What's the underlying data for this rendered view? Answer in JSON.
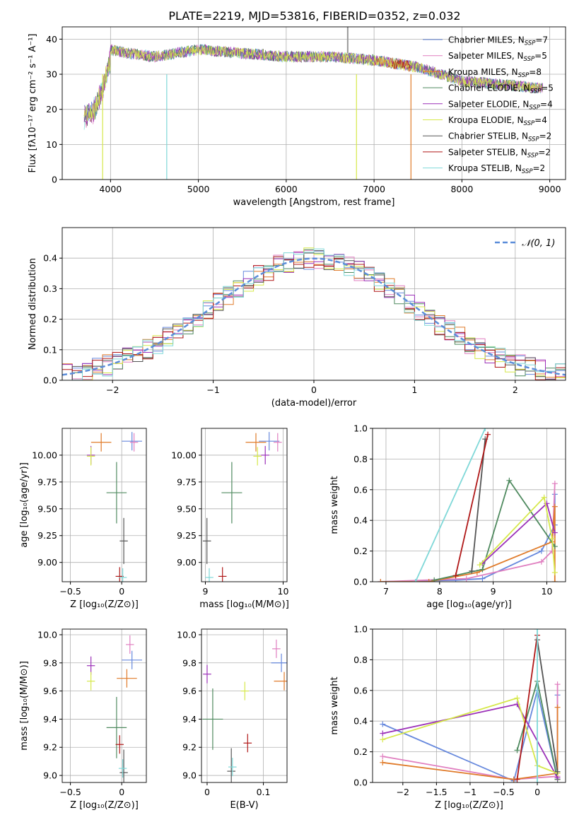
{
  "title": "PLATE=2219, MJD=53816, FIBERID=0352, z=0.032",
  "colors": {
    "chabrier_miles": "#6688dd",
    "salpeter_miles": "#e07fc0",
    "kroupa_miles": "#e07b2a",
    "chabrier_elodie": "#4f8a5f",
    "salpeter_elodie": "#9b30b8",
    "kroupa_elodie": "#d6e84a",
    "chabrier_stelib": "#555555",
    "salpeter_stelib": "#b01818",
    "kroupa_stelib": "#7fd8d8"
  },
  "legend": [
    {
      "label": "Chabrier MILES, N",
      "sub": "SSP",
      "tail": "=7",
      "color": "#6688dd"
    },
    {
      "label": "Salpeter MILES, N",
      "sub": "SSP",
      "tail": "=5",
      "color": "#e07fc0"
    },
    {
      "label": "Kroupa MILES, N",
      "sub": "SSP",
      "tail": "=8",
      "color": "#e07b2a"
    },
    {
      "label": "Chabrier ELODIE, N",
      "sub": "SSP",
      "tail": "=5",
      "color": "#4f8a5f"
    },
    {
      "label": "Salpeter ELODIE, N",
      "sub": "SSP",
      "tail": "=4",
      "color": "#9b30b8"
    },
    {
      "label": "Kroupa ELODIE, N",
      "sub": "SSP",
      "tail": "=4",
      "color": "#d6e84a"
    },
    {
      "label": "Chabrier STELIB, N",
      "sub": "SSP",
      "tail": "=2",
      "color": "#555555"
    },
    {
      "label": "Salpeter STELIB, N",
      "sub": "SSP",
      "tail": "=2",
      "color": "#b01818"
    },
    {
      "label": "Kroupa STELIB, N",
      "sub": "SSP",
      "tail": "=2",
      "color": "#7fd8d8"
    }
  ],
  "chart_data": [
    {
      "type": "line",
      "xlabel": "wavelength [Angstrom, rest frame]",
      "ylabel": "Flux [fλ10⁻¹⁷ erg cm⁻² s⁻¹ A⁻¹]",
      "xlim": [
        3450,
        9180
      ],
      "ylim": [
        0,
        43.5
      ],
      "xticks": [
        4000,
        5000,
        6000,
        7000,
        8000,
        9000
      ],
      "yticks": [
        0,
        10,
        20,
        30,
        40
      ],
      "x": [
        3700,
        3800,
        3900,
        4000,
        4200,
        4500,
        5000,
        5500,
        6000,
        6500,
        7000,
        7500,
        8000,
        8500,
        8900
      ],
      "y": [
        20,
        22,
        27,
        37,
        36,
        35,
        37,
        36,
        35,
        35,
        34,
        32,
        28,
        27,
        26
      ]
    },
    {
      "type": "line",
      "xlabel": "(data-model)/error",
      "ylabel": "Normed distribution",
      "xlim": [
        -2.5,
        2.5
      ],
      "ylim": [
        0,
        0.5
      ],
      "xticks": [
        -2,
        -1,
        0,
        1,
        2
      ],
      "yticks": [
        0.0,
        0.1,
        0.2,
        0.3,
        0.4
      ],
      "legend": "𝒩(0, 1)",
      "x": [
        -2.4,
        -2.2,
        -2.0,
        -1.8,
        -1.6,
        -1.4,
        -1.2,
        -1.0,
        -0.8,
        -0.6,
        -0.4,
        -0.2,
        0.0,
        0.2,
        0.4,
        0.6,
        0.8,
        1.0,
        1.2,
        1.4,
        1.6,
        1.8,
        2.0,
        2.2,
        2.4
      ],
      "y": [
        0.04,
        0.05,
        0.06,
        0.08,
        0.11,
        0.15,
        0.2,
        0.24,
        0.29,
        0.33,
        0.37,
        0.38,
        0.4,
        0.38,
        0.37,
        0.33,
        0.3,
        0.24,
        0.2,
        0.15,
        0.11,
        0.08,
        0.06,
        0.04,
        0.03
      ]
    },
    {
      "type": "scatter",
      "xlabel": "Z [log₁₀(Z/Z⊙)]",
      "ylabel": "age  [log₁₀(age/yr)]",
      "xlim": [
        -0.58,
        0.24
      ],
      "ylim": [
        8.82,
        10.25
      ],
      "xticks": [
        -0.5,
        0.0
      ],
      "yticks": [
        9.0,
        9.25,
        9.5,
        9.75,
        10.0
      ],
      "points": [
        {
          "x": 0.1,
          "y": 10.13,
          "color": "#6688dd"
        },
        {
          "x": 0.12,
          "y": 10.12,
          "color": "#e07fc0"
        },
        {
          "x": -0.2,
          "y": 10.12,
          "color": "#e07b2a"
        },
        {
          "x": -0.05,
          "y": 9.65,
          "color": "#4f8a5f"
        },
        {
          "x": -0.3,
          "y": 10.0,
          "color": "#9b30b8"
        },
        {
          "x": -0.3,
          "y": 9.99,
          "color": "#d6e84a"
        },
        {
          "x": 0.02,
          "y": 9.2,
          "color": "#555555"
        },
        {
          "x": -0.02,
          "y": 8.87,
          "color": "#b01818"
        },
        {
          "x": 0.01,
          "y": 8.86,
          "color": "#7fd8d8"
        }
      ]
    },
    {
      "type": "scatter",
      "xlabel": "mass [log₁₀(M/M⊙)]",
      "ylabel": "",
      "xlim": [
        8.95,
        10.05
      ],
      "ylim": [
        8.82,
        10.25
      ],
      "xticks": [
        9,
        10
      ],
      "yticks": [
        9.0,
        9.25,
        9.5,
        9.75,
        10.0
      ],
      "points": [
        {
          "x": 9.82,
          "y": 10.13,
          "color": "#6688dd"
        },
        {
          "x": 9.93,
          "y": 10.12,
          "color": "#e07fc0"
        },
        {
          "x": 9.65,
          "y": 10.12,
          "color": "#e07b2a"
        },
        {
          "x": 9.34,
          "y": 9.65,
          "color": "#4f8a5f"
        },
        {
          "x": 9.77,
          "y": 10.0,
          "color": "#9b30b8"
        },
        {
          "x": 9.67,
          "y": 9.99,
          "color": "#d6e84a"
        },
        {
          "x": 9.02,
          "y": 9.2,
          "color": "#555555"
        },
        {
          "x": 9.22,
          "y": 8.87,
          "color": "#b01818"
        },
        {
          "x": 9.05,
          "y": 8.86,
          "color": "#7fd8d8"
        }
      ]
    },
    {
      "type": "line",
      "xlabel": "age  [log₁₀(age/yr)]",
      "ylabel": "mass weight",
      "xlim": [
        6.75,
        10.35
      ],
      "ylim": [
        0,
        1
      ],
      "xticks": [
        7,
        8,
        9,
        10
      ],
      "yticks": [
        0.0,
        0.2,
        0.4,
        0.6,
        0.8,
        1.0
      ],
      "series": [
        {
          "color": "#6688dd",
          "x": [
            6.9,
            8.3,
            8.8,
            9.9,
            10.15,
            10.15
          ],
          "y": [
            0.0,
            0.01,
            0.02,
            0.2,
            0.37,
            0.57
          ]
        },
        {
          "color": "#e07fc0",
          "x": [
            6.9,
            8.5,
            9.9,
            10.1,
            10.15
          ],
          "y": [
            0.0,
            0.02,
            0.13,
            0.2,
            0.64
          ]
        },
        {
          "color": "#e07b2a",
          "x": [
            6.9,
            7.8,
            8.7,
            10.1,
            10.15,
            10.15
          ],
          "y": [
            0.0,
            0.0,
            0.06,
            0.26,
            0.49,
            0.0
          ]
        },
        {
          "color": "#4f8a5f",
          "x": [
            7.9,
            8.8,
            9.3,
            10.15
          ],
          "y": [
            0.01,
            0.08,
            0.66,
            0.23
          ]
        },
        {
          "color": "#9b30b8",
          "x": [
            8.8,
            10.0,
            10.15
          ],
          "y": [
            0.12,
            0.51,
            0.32
          ]
        },
        {
          "color": "#d6e84a",
          "x": [
            8.75,
            9.95,
            10.1,
            10.15
          ],
          "y": [
            0.11,
            0.55,
            0.28,
            0.06
          ]
        },
        {
          "color": "#555555",
          "x": [
            8.6,
            8.85
          ],
          "y": [
            0.07,
            0.93
          ]
        },
        {
          "color": "#b01818",
          "x": [
            8.3,
            8.9
          ],
          "y": [
            0.04,
            0.96
          ]
        },
        {
          "color": "#7fd8d8",
          "x": [
            7.55,
            8.85
          ],
          "y": [
            0.0,
            1.0
          ]
        }
      ]
    },
    {
      "type": "scatter",
      "xlabel": "Z [log₁₀(Z/Z⊙)]",
      "ylabel": "mass [log₁₀(M/M⊙)]",
      "xlim": [
        -0.58,
        0.24
      ],
      "ylim": [
        8.95,
        10.04
      ],
      "xticks": [
        -0.5,
        0.0
      ],
      "yticks": [
        9.0,
        9.2,
        9.4,
        9.6,
        9.8,
        10.0
      ],
      "points": [
        {
          "x": 0.1,
          "y": 9.82,
          "color": "#6688dd"
        },
        {
          "x": 0.08,
          "y": 9.93,
          "color": "#e07fc0"
        },
        {
          "x": 0.05,
          "y": 9.69,
          "color": "#e07b2a"
        },
        {
          "x": -0.05,
          "y": 9.34,
          "color": "#4f8a5f"
        },
        {
          "x": -0.3,
          "y": 9.78,
          "color": "#9b30b8"
        },
        {
          "x": -0.3,
          "y": 9.67,
          "color": "#d6e84a"
        },
        {
          "x": 0.02,
          "y": 9.02,
          "color": "#555555"
        },
        {
          "x": -0.02,
          "y": 9.22,
          "color": "#b01818"
        },
        {
          "x": 0.01,
          "y": 9.05,
          "color": "#7fd8d8"
        }
      ]
    },
    {
      "type": "scatter",
      "xlabel": "E(B-V)",
      "ylabel": "",
      "xlim": [
        -0.01,
        0.142
      ],
      "ylim": [
        8.95,
        10.04
      ],
      "xticks": [
        0.0,
        0.1
      ],
      "yticks": [
        9.0,
        9.2,
        9.4,
        9.6,
        9.8,
        10.0
      ],
      "points": [
        {
          "x": 0.132,
          "y": 9.8,
          "color": "#6688dd"
        },
        {
          "x": 0.123,
          "y": 9.9,
          "color": "#e07fc0"
        },
        {
          "x": 0.137,
          "y": 9.67,
          "color": "#e07b2a"
        },
        {
          "x": 0.01,
          "y": 9.4,
          "color": "#4f8a5f"
        },
        {
          "x": 0.0,
          "y": 9.72,
          "color": "#9b30b8"
        },
        {
          "x": 0.067,
          "y": 9.6,
          "color": "#d6e84a"
        },
        {
          "x": 0.043,
          "y": 9.03,
          "color": "#555555"
        },
        {
          "x": 0.072,
          "y": 9.23,
          "color": "#b01818"
        },
        {
          "x": 0.045,
          "y": 9.06,
          "color": "#7fd8d8"
        }
      ]
    },
    {
      "type": "line",
      "xlabel": "Z [log₁₀(Z/Z⊙)]",
      "ylabel": "mass weight",
      "xlim": [
        -2.45,
        0.42
      ],
      "ylim": [
        0,
        1
      ],
      "xticks": [
        -2.0,
        -1.5,
        -1.0,
        -0.5,
        0.0
      ],
      "yticks": [
        0.0,
        0.2,
        0.4,
        0.6,
        0.8,
        1.0
      ],
      "series": [
        {
          "color": "#6688dd",
          "x": [
            -2.3,
            -0.35,
            0.0,
            0.3,
            0.3
          ],
          "y": [
            0.38,
            0.01,
            0.6,
            0.02,
            0.57
          ]
        },
        {
          "color": "#e07fc0",
          "x": [
            -2.3,
            -0.35,
            0.3,
            0.3
          ],
          "y": [
            0.17,
            0.02,
            0.04,
            0.64
          ]
        },
        {
          "color": "#e07b2a",
          "x": [
            -2.3,
            -0.35,
            0.3,
            0.3,
            0.3
          ],
          "y": [
            0.13,
            0.02,
            0.06,
            0.49,
            0.02
          ]
        },
        {
          "color": "#4f8a5f",
          "x": [
            -0.3,
            0.0,
            0.3
          ],
          "y": [
            0.21,
            0.66,
            0.02
          ]
        },
        {
          "color": "#9b30b8",
          "x": [
            -2.3,
            -0.3,
            0.3
          ],
          "y": [
            0.32,
            0.51,
            0.03
          ]
        },
        {
          "color": "#d6e84a",
          "x": [
            -2.3,
            -0.3,
            0.0,
            0.3
          ],
          "y": [
            0.28,
            0.55,
            0.11,
            0.06
          ]
        },
        {
          "color": "#555555",
          "x": [
            0.0,
            0.3
          ],
          "y": [
            0.93,
            0.07
          ]
        },
        {
          "color": "#b01818",
          "x": [
            -0.3,
            0.0
          ],
          "y": [
            0.02,
            0.96
          ]
        },
        {
          "color": "#7fd8d8",
          "x": [
            0.0,
            0.0
          ],
          "y": [
            0.0,
            1.0
          ]
        }
      ]
    }
  ]
}
